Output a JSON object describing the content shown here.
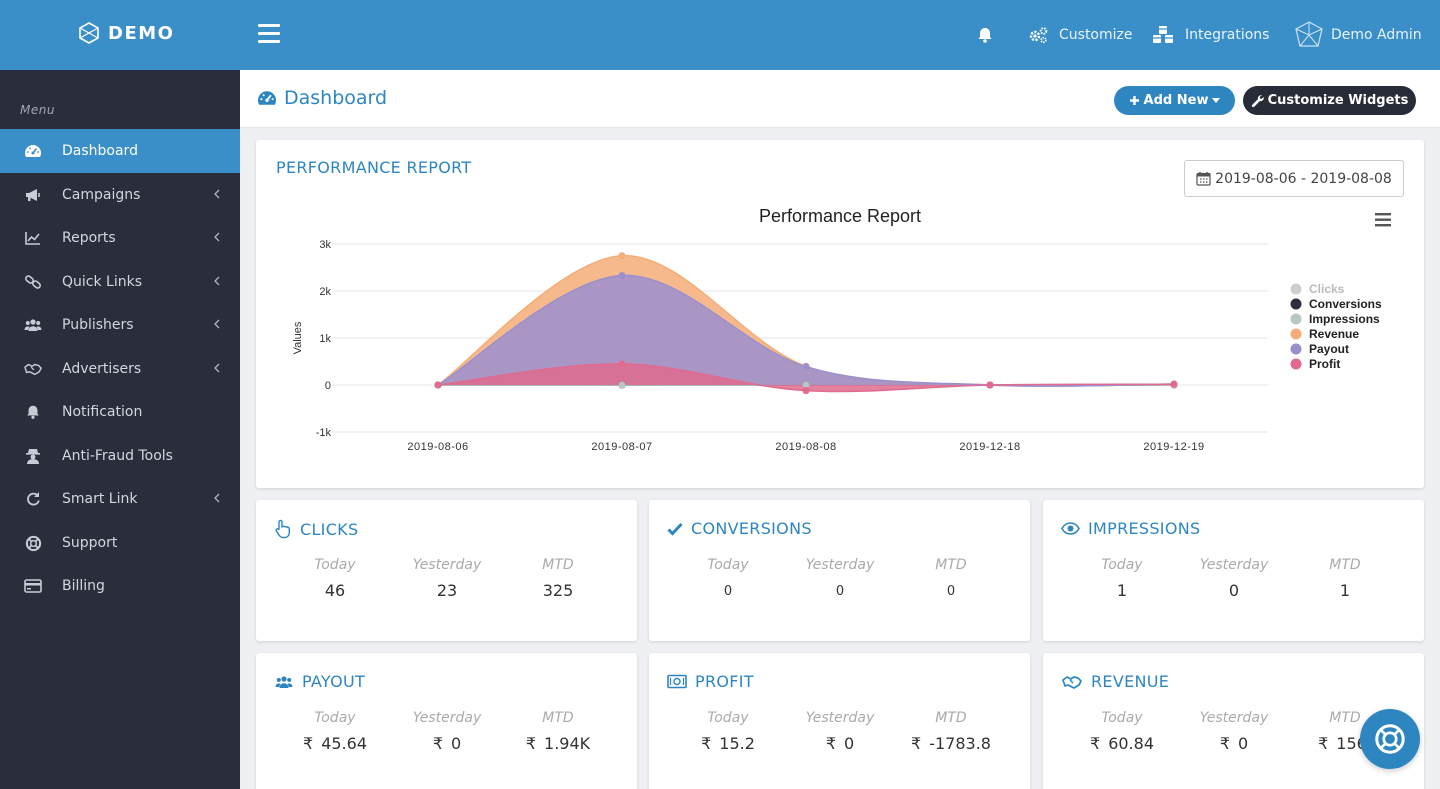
{
  "brand": {
    "name": "DEMO"
  },
  "topbar": {
    "customize": "Customize",
    "integrations": "Integrations",
    "user": "Demo Admin"
  },
  "sidebar": {
    "menu_label": "Menu",
    "items": [
      {
        "label": "Dashboard",
        "icon": "dashboard-icon"
      },
      {
        "label": "Campaigns",
        "icon": "bullhorn-icon"
      },
      {
        "label": "Reports",
        "icon": "line-chart-icon"
      },
      {
        "label": "Quick Links",
        "icon": "link-icon"
      },
      {
        "label": "Publishers",
        "icon": "users-icon"
      },
      {
        "label": "Advertisers",
        "icon": "handshake-icon"
      },
      {
        "label": "Notification",
        "icon": "bell-icon"
      },
      {
        "label": "Anti-Fraud Tools",
        "icon": "user-secret-icon"
      },
      {
        "label": "Smart Link",
        "icon": "refresh-icon"
      },
      {
        "label": "Support",
        "icon": "life-ring-icon"
      },
      {
        "label": "Billing",
        "icon": "credit-card-icon"
      }
    ]
  },
  "page": {
    "title": "Dashboard",
    "add_new": "Add New",
    "customize_widgets": "Customize Widgets"
  },
  "performance": {
    "card_title": "PERFORMANCE REPORT",
    "date_range": "2019-08-06 - 2019-08-08"
  },
  "chart_data": {
    "type": "area",
    "title": "Performance Report",
    "ylabel": "Values",
    "xlabel": "",
    "ylim": [
      -1000,
      3000
    ],
    "yticks": [
      "3k",
      "2k",
      "1k",
      "0",
      "-1k"
    ],
    "categories": [
      "2019-08-06",
      "2019-08-07",
      "2019-08-08",
      "2019-12-18",
      "2019-12-19"
    ],
    "series": [
      {
        "name": "Clicks",
        "color": "#cfcfcf",
        "values": [
          0,
          -5,
          0,
          0,
          10
        ]
      },
      {
        "name": "Conversions",
        "color": "#2b2f3d",
        "values": [
          0,
          0,
          0,
          0,
          0
        ]
      },
      {
        "name": "Impressions",
        "color": "#b8c7c2",
        "values": [
          0,
          0,
          0,
          0,
          0
        ]
      },
      {
        "name": "Revenue",
        "color": "#f4ad77",
        "values": [
          0,
          2750,
          400,
          0,
          20
        ]
      },
      {
        "name": "Payout",
        "color": "#9b8fce",
        "values": [
          0,
          2330,
          390,
          0,
          20
        ]
      },
      {
        "name": "Profit",
        "color": "#e06b8f",
        "values": [
          0,
          450,
          -120,
          0,
          15
        ]
      }
    ]
  },
  "stats": [
    {
      "title": "CLICKS",
      "icon": "pointer-hand-icon",
      "today": "46",
      "yesterday": "23",
      "mtd": "325",
      "currency": "",
      "small": false
    },
    {
      "title": "CONVERSIONS",
      "icon": "check-icon",
      "today": "0",
      "yesterday": "0",
      "mtd": "0",
      "currency": "",
      "small": true
    },
    {
      "title": "IMPRESSIONS",
      "icon": "eye-icon",
      "today": "1",
      "yesterday": "0",
      "mtd": "1",
      "currency": "",
      "small": false
    },
    {
      "title": "PAYOUT",
      "icon": "users-icon",
      "today": "45.64",
      "yesterday": "0",
      "mtd": "1.94K",
      "currency": "₹",
      "small": false
    },
    {
      "title": "PROFIT",
      "icon": "money-icon",
      "today": "15.2",
      "yesterday": "0",
      "mtd": "-1783.8",
      "currency": "₹",
      "small": false
    },
    {
      "title": "REVENUE",
      "icon": "handshake-icon",
      "today": "60.84",
      "yesterday": "0",
      "mtd": "156.",
      "currency": "₹",
      "small": false
    }
  ],
  "stat_labels": {
    "today": "Today",
    "yesterday": "Yesterday",
    "mtd": "MTD"
  },
  "colors": {
    "primary": "#3a8fc9",
    "sidebar": "#2a2d3c",
    "accent": "#2e86c1"
  }
}
